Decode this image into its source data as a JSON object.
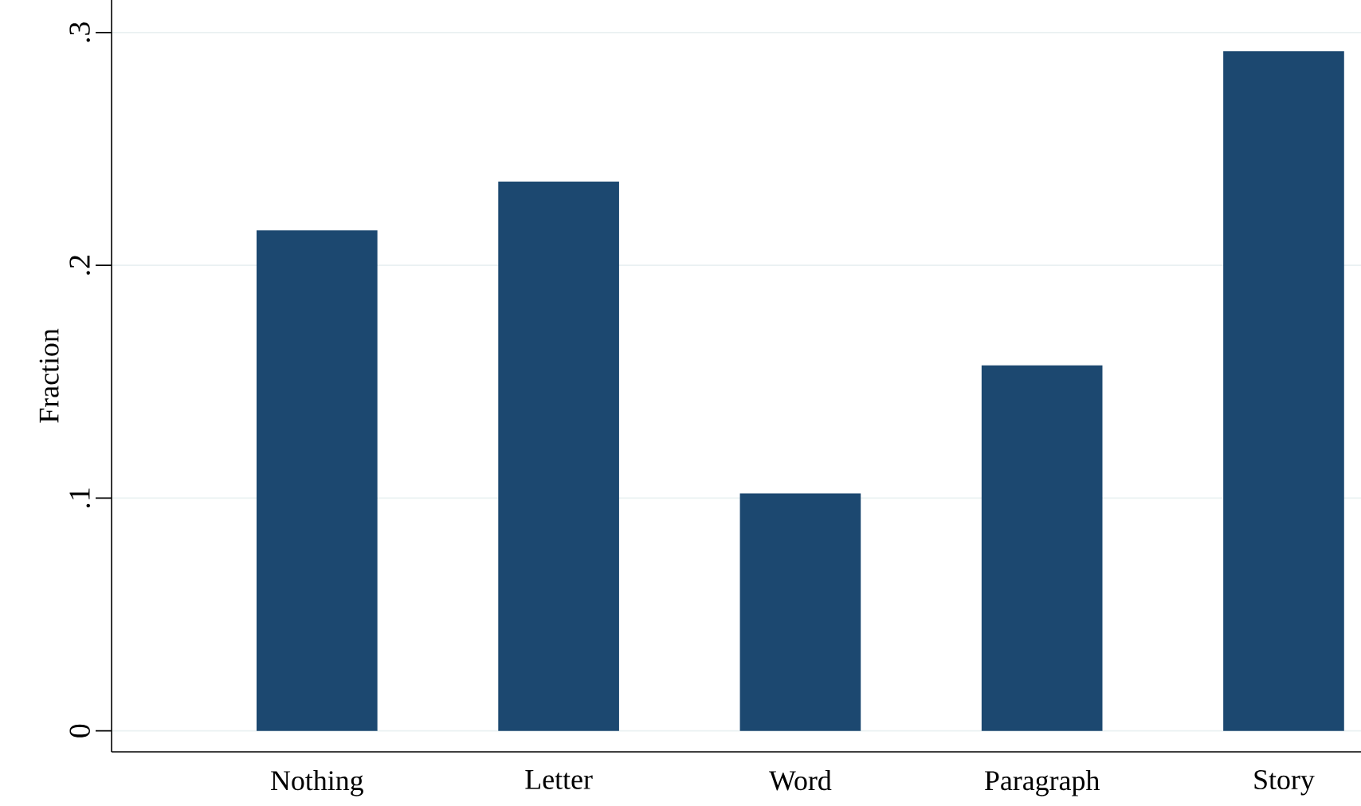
{
  "chart_data": {
    "type": "bar",
    "ylabel": "Fraction",
    "categories": [
      "Nothing",
      "Letter",
      "Word",
      "Paragraph",
      "Story"
    ],
    "values": [
      0.215,
      0.236,
      0.102,
      0.157,
      0.292
    ],
    "color": "#1c4870",
    "ylim": [
      -0.009,
      0.314
    ],
    "yticks": [
      0,
      {
        "value": 0.1,
        "label": ".1"
      },
      {
        "value": 0.2,
        "label": ".2"
      },
      {
        "value": 0.3,
        "label": ".3"
      }
    ],
    "grid": "y"
  }
}
